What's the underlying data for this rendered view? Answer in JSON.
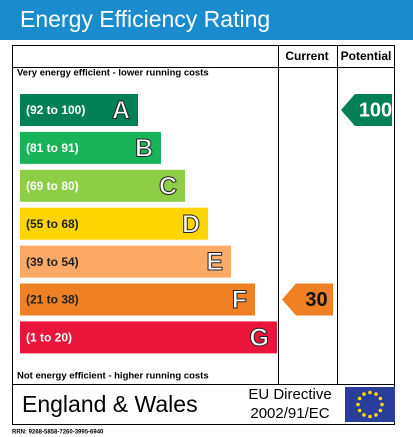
{
  "title": "Energy Efficiency Rating",
  "headers": {
    "current": "Current",
    "potential": "Potential"
  },
  "top_note": "Very energy efficient - lower running costs",
  "bottom_note": "Not energy efficient - higher running costs",
  "bands": [
    {
      "range": "(92 to 100)",
      "letter": "A",
      "color": "#008054"
    },
    {
      "range": "(81 to 91)",
      "letter": "B",
      "color": "#19b459"
    },
    {
      "range": "(69 to 80)",
      "letter": "C",
      "color": "#8dce46"
    },
    {
      "range": "(55 to 68)",
      "letter": "D",
      "color": "#ffd500"
    },
    {
      "range": "(39 to 54)",
      "letter": "E",
      "color": "#fcaa65"
    },
    {
      "range": "(21 to 38)",
      "letter": "F",
      "color": "#ef8023"
    },
    {
      "range": "(1 to 20)",
      "letter": "G",
      "color": "#e9153b"
    }
  ],
  "current": {
    "value": 30
  },
  "potential": {
    "value": 100
  },
  "footer": {
    "region": "England & Wales",
    "directive_line1": "EU Directive",
    "directive_line2": "2002/91/EC"
  },
  "rrn": "RRN: 9268-5858-7260-3995-6940"
}
